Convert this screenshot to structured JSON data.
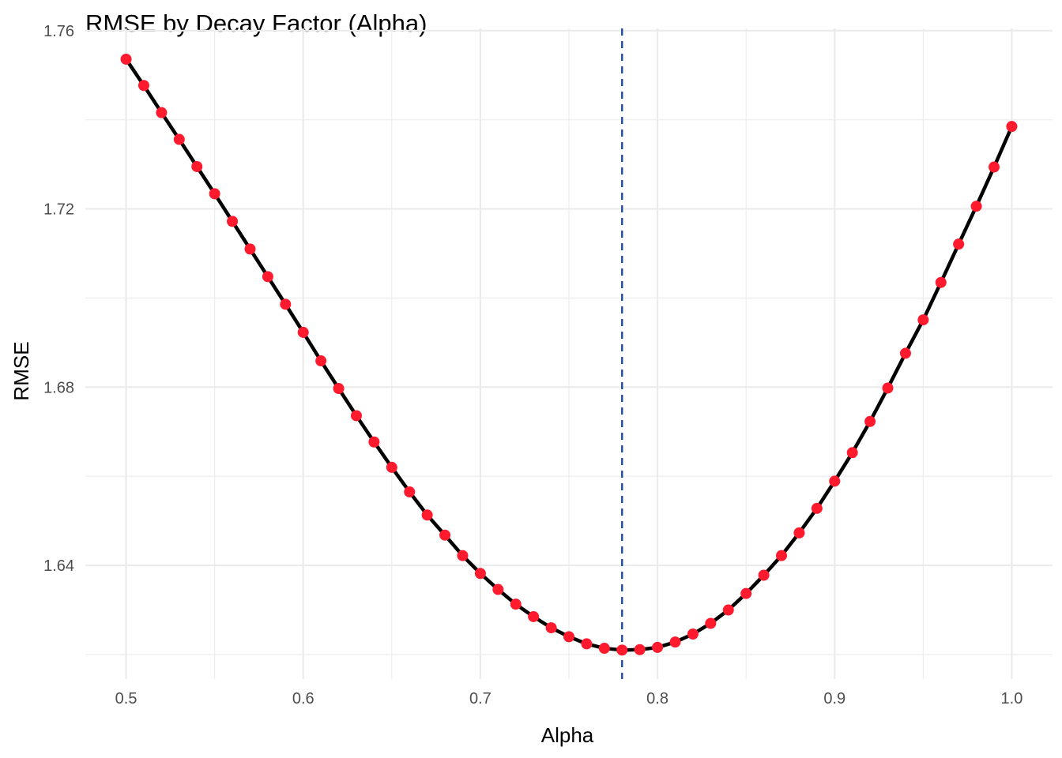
{
  "chart_data": {
    "type": "line",
    "title": "RMSE by Decay Factor (Alpha)",
    "xlabel": "Alpha",
    "ylabel": "RMSE",
    "xlim": [
      0.477,
      1.023
    ],
    "ylim": [
      1.6145,
      1.7605
    ],
    "x_ticks": [
      0.5,
      0.6,
      0.7,
      0.8,
      0.9,
      1.0
    ],
    "x_tick_labels": [
      "0.5",
      "0.6",
      "0.7",
      "0.8",
      "0.9",
      "1.0"
    ],
    "y_ticks": [
      1.64,
      1.68,
      1.72,
      1.76
    ],
    "y_tick_labels": [
      "1.64",
      "1.68",
      "1.72",
      "1.76"
    ],
    "grid": true,
    "series": [
      {
        "line_color": "#000000",
        "point_color": "#ff1a2e",
        "x": [
          0.5,
          0.51,
          0.52,
          0.53,
          0.54,
          0.55,
          0.56,
          0.57,
          0.58,
          0.59,
          0.6,
          0.61,
          0.62,
          0.63,
          0.64,
          0.65,
          0.66,
          0.67,
          0.68,
          0.69,
          0.7,
          0.71,
          0.72,
          0.73,
          0.74,
          0.75,
          0.76,
          0.77,
          0.78,
          0.79,
          0.8,
          0.81,
          0.82,
          0.83,
          0.84,
          0.85,
          0.86,
          0.87,
          0.88,
          0.89,
          0.9,
          0.91,
          0.92,
          0.93,
          0.94,
          0.95,
          0.96,
          0.97,
          0.98,
          0.99,
          1.0
        ],
        "values": [
          1.7536,
          1.7477,
          1.7416,
          1.7356,
          1.7295,
          1.7234,
          1.7172,
          1.711,
          1.7048,
          1.6986,
          1.6923,
          1.6859,
          1.6797,
          1.6736,
          1.6677,
          1.662,
          1.6565,
          1.6513,
          1.6468,
          1.6422,
          1.6382,
          1.6346,
          1.6313,
          1.6285,
          1.626,
          1.624,
          1.6224,
          1.6214,
          1.621,
          1.6211,
          1.6216,
          1.6228,
          1.6246,
          1.627,
          1.63,
          1.6337,
          1.6378,
          1.6422,
          1.6473,
          1.6528,
          1.6589,
          1.6653,
          1.6723,
          1.6798,
          1.6876,
          1.6951,
          1.7035,
          1.7121,
          1.7206,
          1.7294,
          1.7385
        ]
      }
    ],
    "reference_line": {
      "orientation": "vertical",
      "x": 0.78,
      "style": "dashed",
      "color": "#1f4e8c"
    }
  }
}
